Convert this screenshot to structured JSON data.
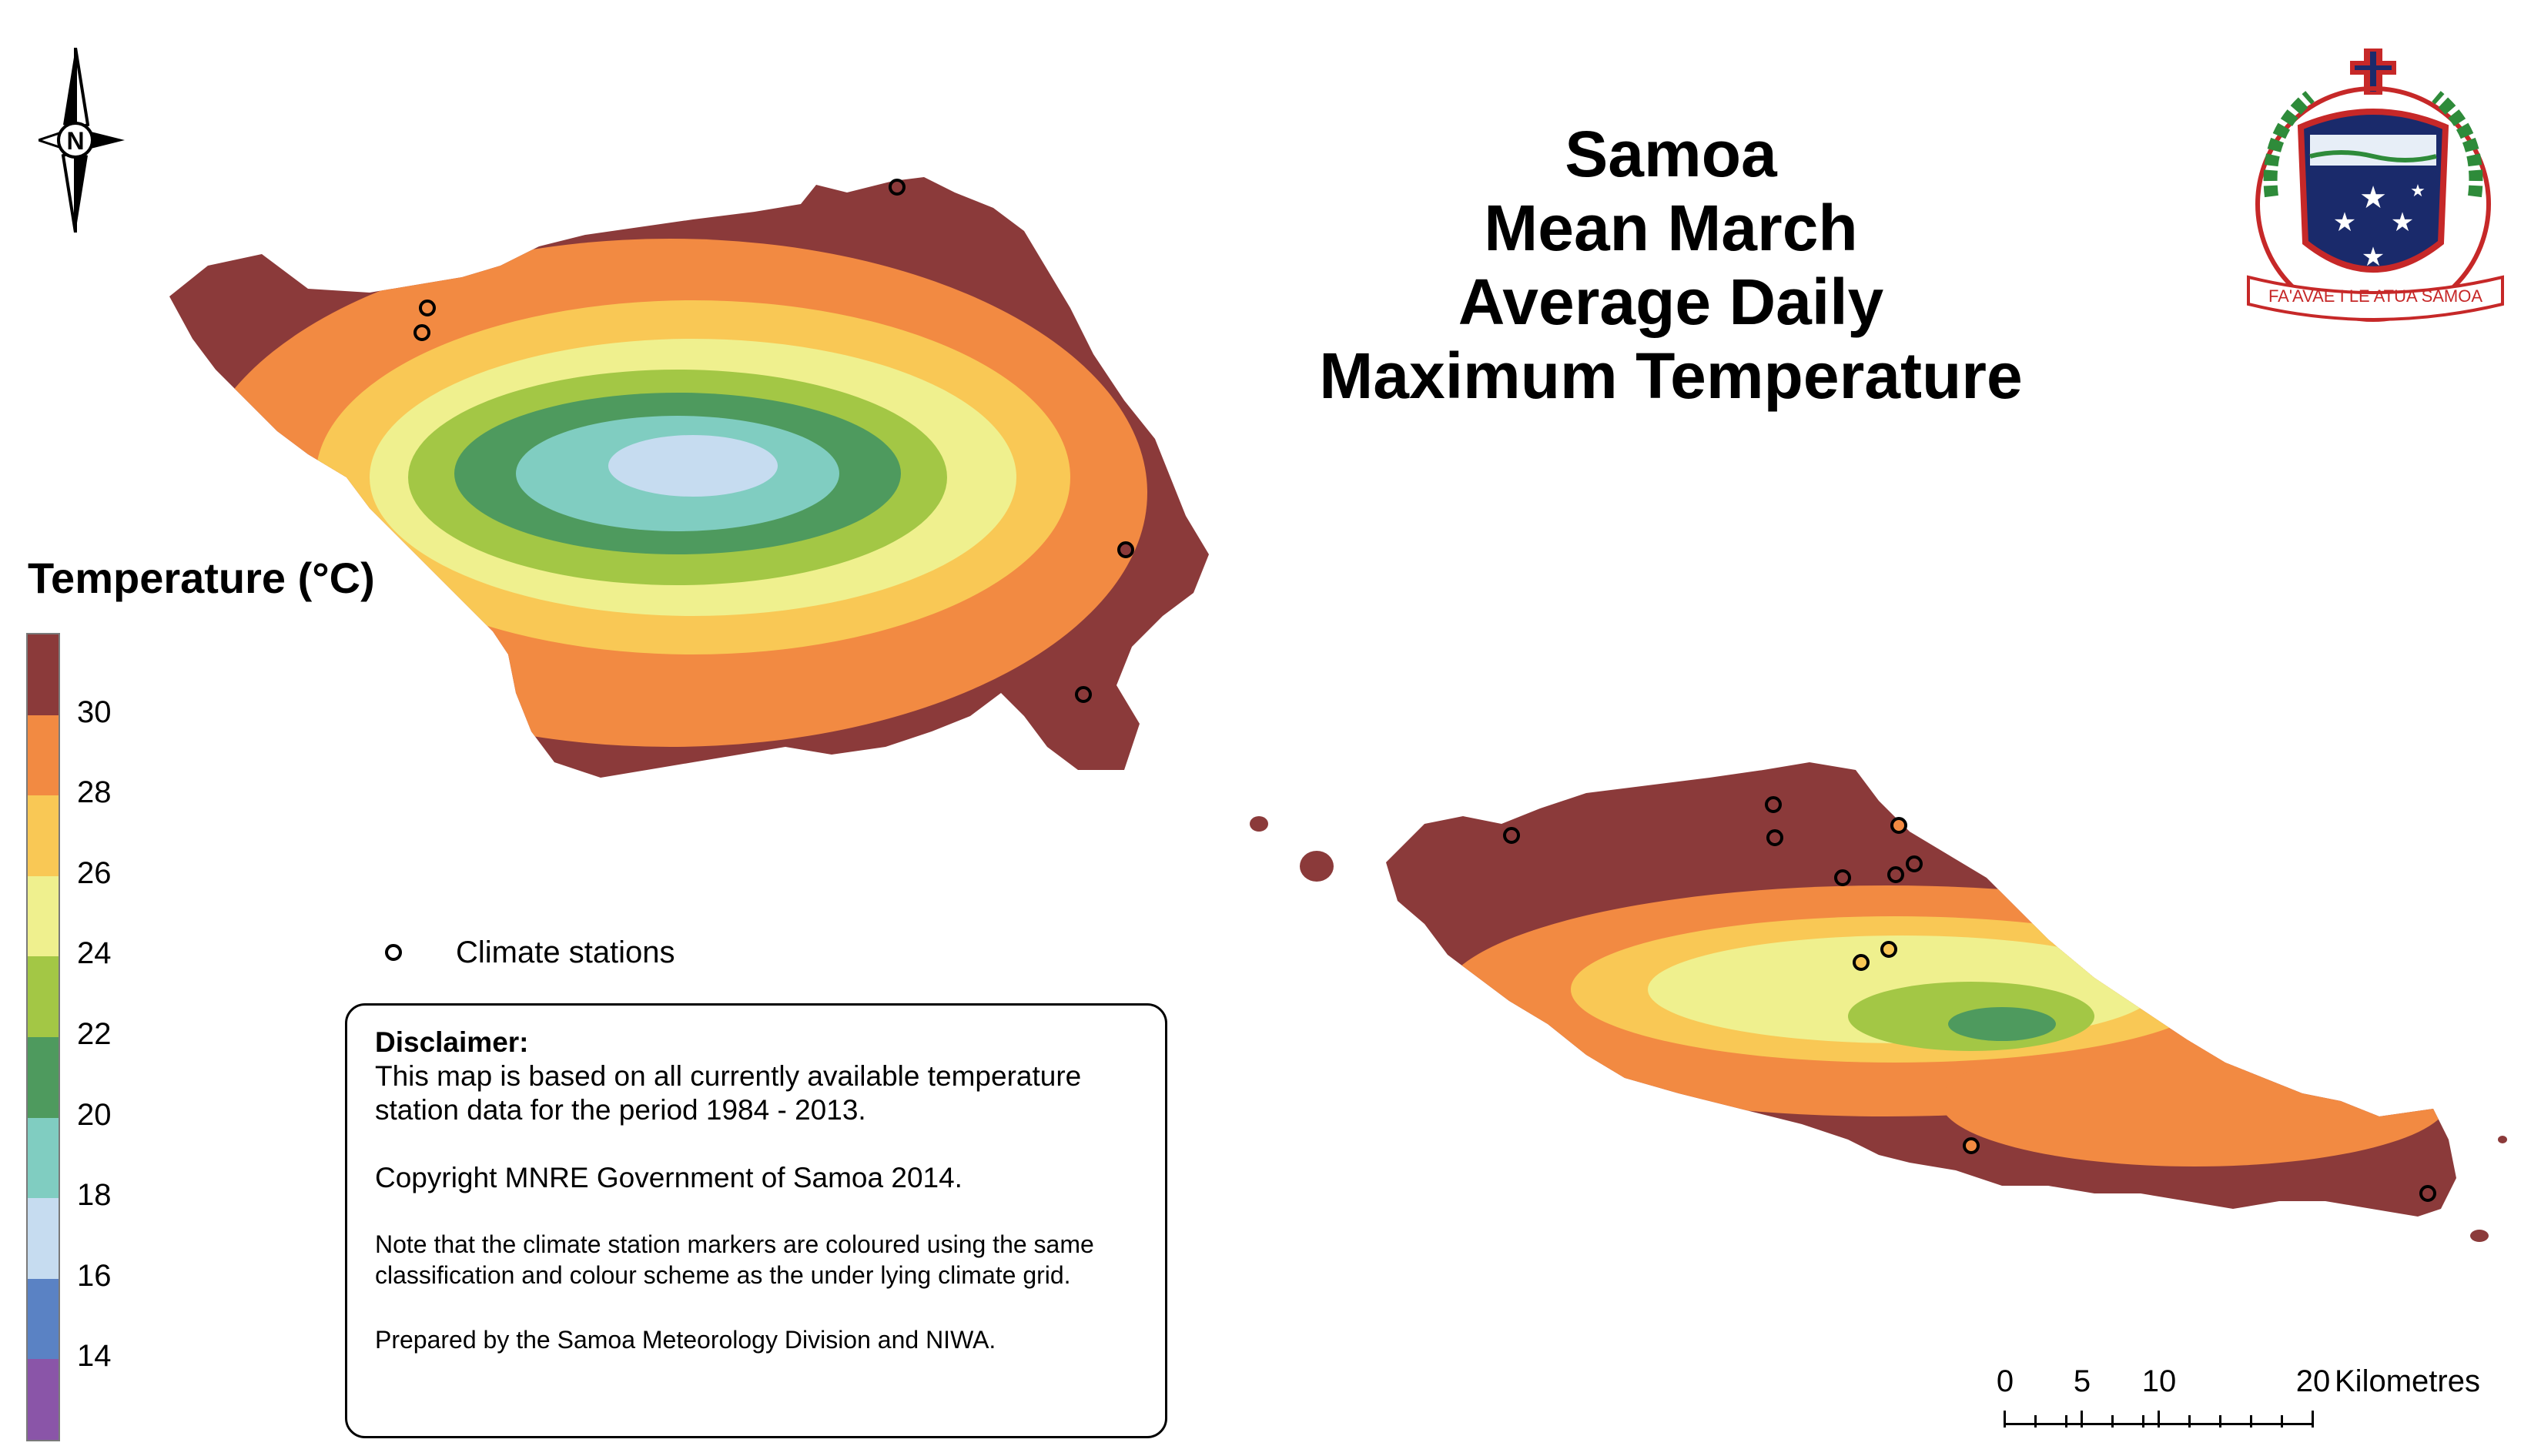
{
  "title": {
    "line1": "Samoa",
    "line2": "Mean March",
    "line3": "Average Daily",
    "line4": "Maximum Temperature"
  },
  "legend": {
    "title": "Temperature (°C)",
    "classes": [
      {
        "color": "#8b3a3a"
      },
      {
        "color": "#f28a42"
      },
      {
        "color": "#f9c855"
      },
      {
        "color": "#eff08e"
      },
      {
        "color": "#a3c745"
      },
      {
        "color": "#4e9a5e"
      },
      {
        "color": "#80cdc1"
      },
      {
        "color": "#c6dcf0"
      },
      {
        "color": "#5a82c4"
      },
      {
        "color": "#8a55a8"
      }
    ],
    "ticks": [
      "30",
      "28",
      "26",
      "24",
      "22",
      "20",
      "18",
      "16",
      "14"
    ]
  },
  "stations_legend": {
    "label": "Climate stations"
  },
  "disclaimer": {
    "heading": "Disclaimer:",
    "line1": "This map is based on all currently available temperature",
    "line2": "station data for the period 1984 - 2013.",
    "copyright": "Copyright MNRE Government of Samoa 2014.",
    "note1": "Note that the climate station markers are coloured using the same",
    "note2": "classification and colour scheme as the under lying climate grid.",
    "prepared": "Prepared by the Samoa Meteorology Division and NIWA."
  },
  "scale_bar": {
    "labels": [
      "0",
      "5",
      "10",
      "20"
    ],
    "units": "Kilometres"
  },
  "north_arrow": {
    "letter": "N"
  },
  "coat_of_arms": {
    "motto": "FA'AVAE I LE ATUA SAMOA"
  },
  "stations": [
    {
      "island": "savaii",
      "color": "#8b3a3a"
    },
    {
      "island": "savaii",
      "color": "#f28a42"
    },
    {
      "island": "savaii",
      "color": "#f28a42"
    },
    {
      "island": "savaii",
      "color": "#8b3a3a"
    },
    {
      "island": "savaii",
      "color": "#8b3a3a"
    },
    {
      "island": "upolu",
      "color": "#8b3a3a"
    },
    {
      "island": "upolu",
      "color": "#8b3a3a"
    },
    {
      "island": "upolu",
      "color": "#8b3a3a"
    },
    {
      "island": "upolu",
      "color": "#f28a42"
    },
    {
      "island": "upolu",
      "color": "#8b3a3a"
    },
    {
      "island": "upolu",
      "color": "#8b3a3a"
    },
    {
      "island": "upolu",
      "color": "#8b3a3a"
    },
    {
      "island": "upolu",
      "color": "#f9c855"
    },
    {
      "island": "upolu",
      "color": "#f9c855"
    },
    {
      "island": "upolu",
      "color": "#f28a42"
    },
    {
      "island": "upolu",
      "color": "#8b3a3a"
    }
  ]
}
